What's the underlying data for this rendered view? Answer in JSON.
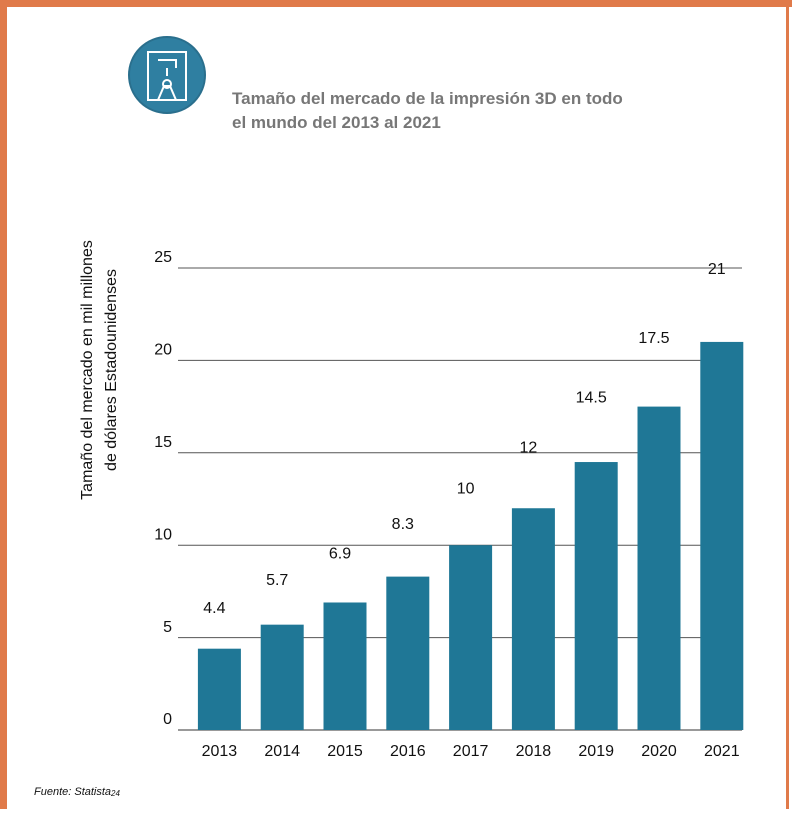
{
  "chart_data": {
    "type": "bar",
    "title": "Tamaño del mercado de la impresión 3D en todo el mundo del 2013 al 2021",
    "y_label": "Tamaño del mercado en mil millones de dólares Estadounidenses",
    "categories": [
      "2013",
      "2014",
      "2015",
      "2016",
      "2017",
      "2018",
      "2019",
      "2020",
      "2021"
    ],
    "values": [
      4.4,
      5.7,
      6.9,
      8.3,
      10,
      12,
      14.5,
      17.5,
      21
    ],
    "color": "#1f7796",
    "ylim": [
      0,
      25
    ],
    "yticks": [
      0,
      5,
      10,
      15,
      20,
      25
    ],
    "grid": true,
    "source": "Fuente: Statista",
    "source_note": "24"
  }
}
